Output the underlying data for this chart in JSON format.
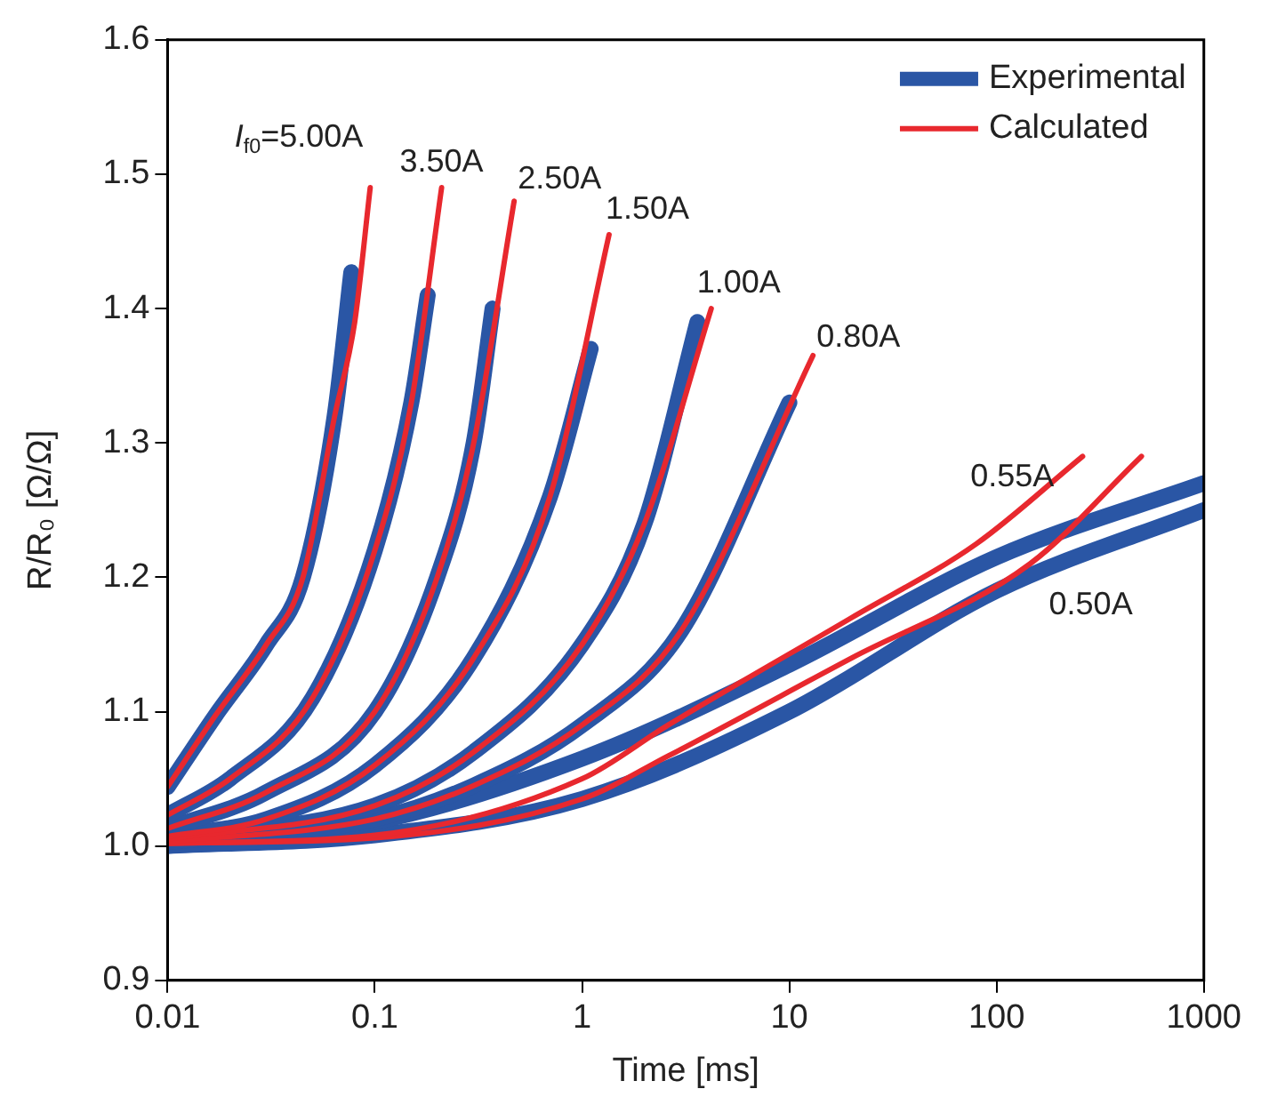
{
  "chart_data": {
    "type": "line",
    "xlabel": "Time [ms]",
    "ylabel": "R/R₀ [Ω/Ω]",
    "log": "x",
    "grid": false,
    "legend": "top right",
    "marker": "none",
    "line_style": "solid",
    "xlim": [
      0.01,
      1000
    ],
    "xticks": [
      0.01,
      0.1,
      1,
      10,
      100,
      1000
    ],
    "ylim": [
      0.9,
      1.6
    ],
    "yticks": [
      {
        "value": 0.9,
        "label": "0.9"
      },
      {
        "value": 1,
        "label": "1.0"
      },
      {
        "value": 1.1,
        "label": "1.1"
      },
      {
        "value": 1.2,
        "label": "1.2"
      },
      {
        "value": 1.3,
        "label": "1.3"
      },
      {
        "value": 1.4,
        "label": "1.4"
      },
      {
        "value": 1.5,
        "label": "1.5"
      },
      {
        "value": 1.6,
        "label": "1.6"
      }
    ],
    "series": [
      {
        "name": "Experimental",
        "color": "#2a56a5",
        "x": [
          0.01,
          0.017,
          0.03,
          0.045,
          0.064,
          0.077
        ],
        "values": [
          1.044,
          1.097,
          1.15,
          1.2,
          1.32,
          1.427
        ]
      },
      {
        "color": "#2a56a5",
        "x": [
          0.01,
          0.02,
          0.05,
          0.1,
          0.15,
          0.18
        ],
        "values": [
          1.023,
          1.05,
          1.11,
          1.22,
          1.33,
          1.41
        ]
      },
      {
        "color": "#2a56a5",
        "x": [
          0.01,
          0.03,
          0.1,
          0.2,
          0.3,
          0.37
        ],
        "values": [
          1.013,
          1.04,
          1.1,
          1.2,
          1.3,
          1.4
        ]
      },
      {
        "color": "#2a56a5",
        "x": [
          0.01,
          0.03,
          0.1,
          0.3,
          0.7,
          1.1
        ],
        "values": [
          1.007,
          1.02,
          1.06,
          1.14,
          1.26,
          1.37
        ]
      },
      {
        "color": "#2a56a5",
        "x": [
          0.01,
          0.1,
          0.3,
          1,
          2,
          3.6
        ],
        "values": [
          1.005,
          1.03,
          1.07,
          1.15,
          1.24,
          1.39
        ]
      },
      {
        "color": "#2a56a5",
        "x": [
          0.01,
          0.1,
          0.3,
          1,
          3,
          10
        ],
        "values": [
          1.003,
          1.02,
          1.045,
          1.09,
          1.16,
          1.33
        ]
      },
      {
        "color": "#2a56a5",
        "x": [
          0.01,
          0.1,
          1,
          10,
          100,
          1000
        ],
        "values": [
          1.003,
          1.018,
          1.065,
          1.135,
          1.215,
          1.27
        ]
      },
      {
        "color": "#2a56a5",
        "x": [
          0.01,
          0.1,
          1,
          10,
          100,
          1000
        ],
        "values": [
          1.0,
          1.008,
          1.035,
          1.1,
          1.19,
          1.25
        ]
      },
      {
        "name": "Calculated",
        "color": "#e8282e",
        "x": [
          0.01,
          0.017,
          0.03,
          0.045,
          0.064,
          0.08,
          0.095
        ],
        "values": [
          1.044,
          1.097,
          1.15,
          1.2,
          1.32,
          1.39,
          1.49
        ]
      },
      {
        "color": "#e8282e",
        "x": [
          0.01,
          0.02,
          0.05,
          0.1,
          0.15,
          0.21
        ],
        "values": [
          1.023,
          1.05,
          1.11,
          1.22,
          1.33,
          1.49
        ]
      },
      {
        "color": "#e8282e",
        "x": [
          0.01,
          0.03,
          0.1,
          0.2,
          0.3,
          0.47
        ],
        "values": [
          1.013,
          1.04,
          1.1,
          1.2,
          1.3,
          1.48
        ]
      },
      {
        "color": "#e8282e",
        "x": [
          0.01,
          0.03,
          0.1,
          0.3,
          0.7,
          1.35
        ],
        "values": [
          1.007,
          1.02,
          1.06,
          1.14,
          1.26,
          1.455
        ]
      },
      {
        "color": "#e8282e",
        "x": [
          0.01,
          0.1,
          0.3,
          1,
          2,
          4.2
        ],
        "values": [
          1.005,
          1.03,
          1.07,
          1.15,
          1.24,
          1.4
        ]
      },
      {
        "color": "#e8282e",
        "x": [
          0.01,
          0.1,
          0.3,
          1,
          3,
          13
        ],
        "values": [
          1.003,
          1.02,
          1.045,
          1.09,
          1.16,
          1.365
        ]
      },
      {
        "color": "#e8282e",
        "x": [
          0.01,
          0.1,
          1,
          2.6,
          20,
          80,
          260
        ],
        "values": [
          1.002,
          1.008,
          1.05,
          1.09,
          1.17,
          1.225,
          1.29
        ]
      },
      {
        "color": "#e8282e",
        "x": [
          0.01,
          0.1,
          1,
          2.6,
          20,
          145,
          500
        ],
        "values": [
          1.002,
          1.006,
          1.035,
          1.067,
          1.14,
          1.21,
          1.29
        ]
      }
    ],
    "annotations": [
      "I$_{f0}$=5.00A",
      "3.50A",
      "2.50A",
      "1.50A",
      "1.00A",
      "0.80A",
      "0.55A",
      "0.50A"
    ]
  }
}
